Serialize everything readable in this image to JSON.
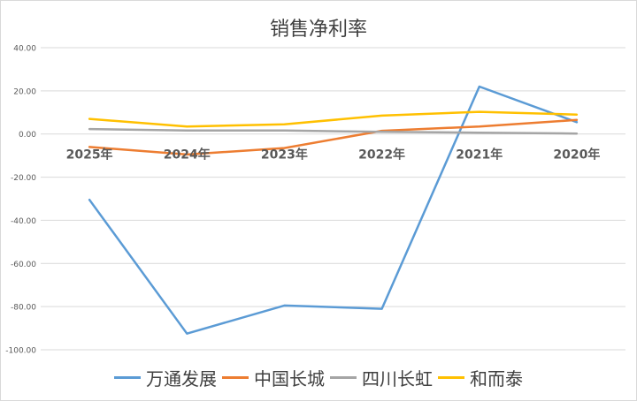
{
  "chart_data": {
    "type": "line",
    "title": "销售净利率",
    "categories": [
      "2025年",
      "2024年",
      "2023年",
      "2022年",
      "2021年",
      "2020年"
    ],
    "y_ticks": [
      "40.00",
      "20.00",
      "0.00",
      "-20.00",
      "-40.00",
      "-60.00",
      "-80.00",
      "-100.00"
    ],
    "ylim": [
      -100,
      40
    ],
    "grid": true,
    "legend_position": "bottom",
    "series": [
      {
        "name": "万通发展",
        "color": "#5b9bd5",
        "values": [
          -30.5,
          -92.5,
          -79.5,
          -81.0,
          22.0,
          5.5
        ]
      },
      {
        "name": "中国长城",
        "color": "#ed7d31",
        "values": [
          -6.0,
          -9.5,
          -6.5,
          1.5,
          3.5,
          6.5
        ]
      },
      {
        "name": "四川长虹",
        "color": "#a5a5a5",
        "values": [
          2.3,
          1.6,
          1.6,
          1.0,
          0.6,
          0.2
        ]
      },
      {
        "name": "和而泰",
        "color": "#ffc000",
        "values": [
          7.0,
          3.5,
          4.5,
          8.5,
          10.3,
          9.0
        ]
      }
    ]
  }
}
